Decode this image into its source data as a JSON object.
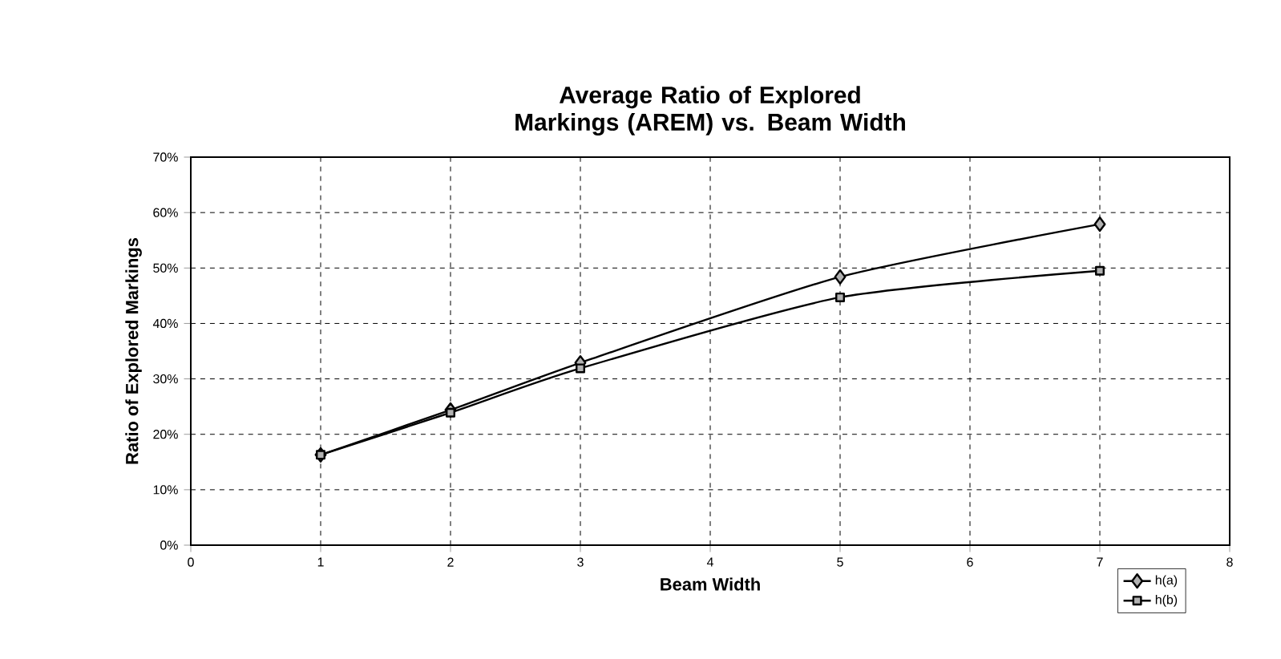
{
  "chart_data": {
    "type": "line",
    "title": "Average Ratio of Explored Markings (AREM) vs. Beam Width",
    "xlabel": "Beam Width",
    "ylabel": "Ratio of Explored Markings",
    "xlim": [
      0,
      8
    ],
    "xticks": [
      0,
      1,
      2,
      3,
      4,
      5,
      6,
      7,
      8
    ],
    "ylim": [
      0,
      70
    ],
    "yticks": [
      {
        "value": 0,
        "label": "0%"
      },
      {
        "value": 10,
        "label": "10%"
      },
      {
        "value": 20,
        "label": "20%"
      },
      {
        "value": 30,
        "label": "30%"
      },
      {
        "value": 40,
        "label": "40%"
      },
      {
        "value": 50,
        "label": "50%"
      },
      {
        "value": 60,
        "label": "60%"
      },
      {
        "value": 70,
        "label": "70%"
      }
    ],
    "x": [
      1,
      2,
      3,
      5,
      7
    ],
    "series": [
      {
        "name": "h(a)",
        "color": "#000000",
        "marker": "diamond",
        "values": [
          16.3,
          24.4,
          32.9,
          48.4,
          57.9
        ]
      },
      {
        "name": "h(b)",
        "color": "#000000",
        "marker": "square",
        "values": [
          16.3,
          23.9,
          31.9,
          44.7,
          49.5
        ]
      }
    ],
    "grid": true,
    "legend": "bottom right",
    "line_style": "solid"
  }
}
